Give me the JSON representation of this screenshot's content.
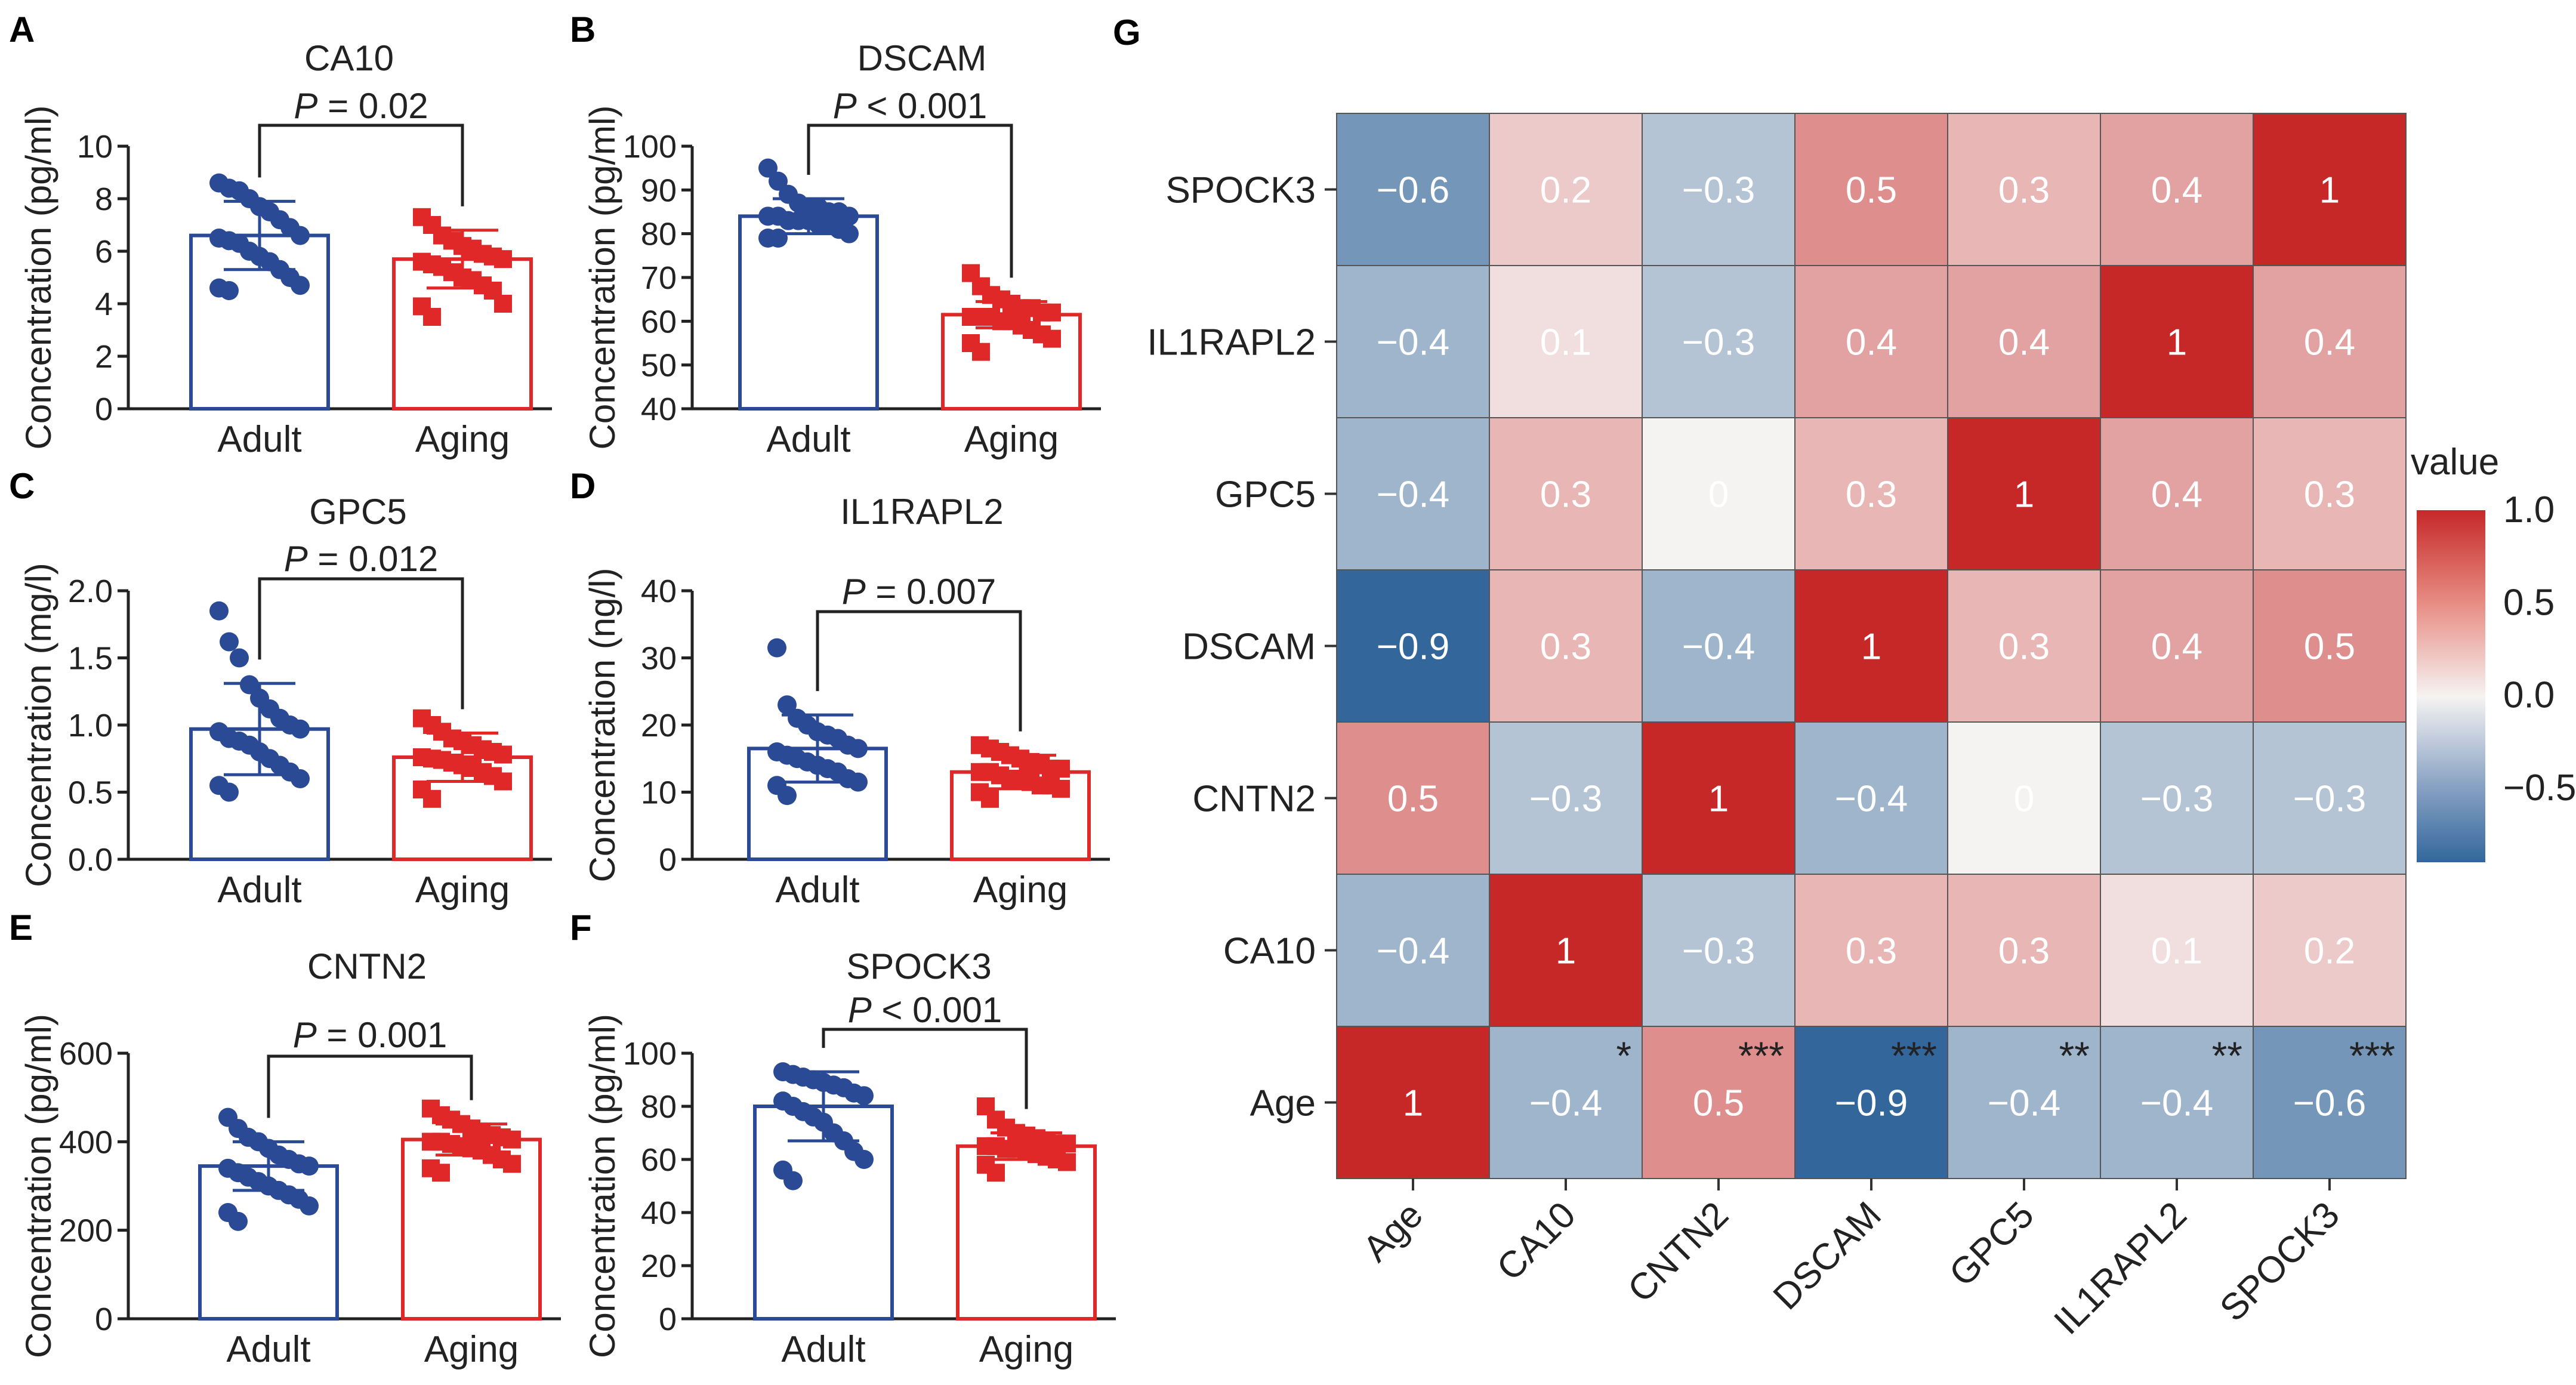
{
  "figure_labels": [
    "A",
    "B",
    "C",
    "D",
    "E",
    "F",
    "G"
  ],
  "chart_data": [
    {
      "panel": "A",
      "type": "bar",
      "title": "CA10",
      "ylabel": "Concentration (pg/ml)",
      "ylim": [
        0,
        10
      ],
      "yticks": [
        "0",
        "2",
        "4",
        "6",
        "8",
        "10"
      ],
      "categories": [
        "Adult",
        "Aging"
      ],
      "values": [
        6.6,
        5.7
      ],
      "sd": [
        1.3,
        1.1
      ],
      "p_label": "P",
      "p_value": "= 0.02",
      "points": [
        [
          8.6,
          8.4,
          8.3,
          8.0,
          7.7,
          7.5,
          7.2,
          6.9,
          6.6,
          6.5,
          6.4,
          6.3,
          6.0,
          5.8,
          5.6,
          5.3,
          5.0,
          4.7,
          4.6,
          4.5
        ],
        [
          7.3,
          7.0,
          6.6,
          6.4,
          6.2,
          6.1,
          5.9,
          5.8,
          5.7,
          5.6,
          5.5,
          5.4,
          5.2,
          5.0,
          4.9,
          4.7,
          4.5,
          4.0,
          3.9,
          3.5
        ]
      ]
    },
    {
      "panel": "B",
      "type": "bar",
      "title": "DSCAM",
      "ylabel": "Concentration (pg/ml)",
      "ylim": [
        40,
        100
      ],
      "yticks": [
        "40",
        "50",
        "60",
        "70",
        "80",
        "90",
        "100"
      ],
      "categories": [
        "Adult",
        "Aging"
      ],
      "values": [
        84,
        61.5
      ],
      "sd": [
        4,
        3
      ],
      "p_label": "P",
      "p_value": "< 0.001",
      "points": [
        [
          95,
          92,
          89,
          87,
          86,
          86,
          85,
          85,
          84,
          84,
          84,
          83,
          83,
          83,
          82,
          82,
          81,
          80,
          79,
          79
        ],
        [
          71,
          68,
          66,
          65,
          64,
          63,
          63,
          62,
          62,
          61,
          61,
          61,
          60,
          60,
          59,
          58,
          57,
          56,
          55,
          53
        ]
      ]
    },
    {
      "panel": "C",
      "type": "bar",
      "title": "GPC5",
      "ylabel": "Concentration (mg/l)",
      "ylim": [
        0,
        2.0
      ],
      "yticks": [
        "0.0",
        "0.5",
        "1.0",
        "1.5",
        "2.0"
      ],
      "categories": [
        "Adult",
        "Aging"
      ],
      "values": [
        0.97,
        0.76
      ],
      "sd": [
        0.34,
        0.18
      ],
      "p_label": "P",
      "p_value": "= 0.012",
      "points": [
        [
          1.85,
          1.62,
          1.5,
          1.3,
          1.2,
          1.12,
          1.05,
          1.0,
          0.97,
          0.95,
          0.9,
          0.88,
          0.85,
          0.8,
          0.75,
          0.7,
          0.65,
          0.6,
          0.55,
          0.5
        ],
        [
          1.05,
          1.0,
          0.95,
          0.9,
          0.88,
          0.85,
          0.82,
          0.8,
          0.78,
          0.76,
          0.75,
          0.74,
          0.72,
          0.7,
          0.68,
          0.65,
          0.62,
          0.58,
          0.52,
          0.45
        ]
      ]
    },
    {
      "panel": "D",
      "type": "bar",
      "title": "IL1RAPL2",
      "ylabel": "Concentration (ng/l)",
      "ylim": [
        0,
        40
      ],
      "yticks": [
        "0",
        "10",
        "20",
        "30",
        "40"
      ],
      "categories": [
        "Adult",
        "Aging"
      ],
      "values": [
        16.5,
        13
      ],
      "sd": [
        5,
        2.5
      ],
      "p_label": "P",
      "p_value": "= 0.007",
      "points": [
        [
          31.5,
          23,
          21,
          20,
          19,
          18.5,
          18,
          17,
          16.5,
          16,
          15.5,
          15,
          14.5,
          14,
          13.5,
          13,
          12,
          11.5,
          11,
          9.5
        ],
        [
          17,
          16.5,
          16,
          15.5,
          15,
          14.5,
          14,
          13.5,
          13.5,
          13,
          13,
          12.5,
          12,
          12,
          11.5,
          11,
          11,
          10.5,
          10,
          9
        ]
      ]
    },
    {
      "panel": "E",
      "type": "bar",
      "title": "CNTN2",
      "ylabel": "Concentration (pg/ml)",
      "ylim": [
        0,
        600
      ],
      "yticks": [
        "0",
        "200",
        "400",
        "600"
      ],
      "categories": [
        "Adult",
        "Aging"
      ],
      "values": [
        345,
        405
      ],
      "sd": [
        55,
        35
      ],
      "p_label": "P",
      "p_value": "= 0.001",
      "points": [
        [
          455,
          430,
          410,
          400,
          385,
          370,
          360,
          350,
          345,
          340,
          330,
          320,
          310,
          300,
          290,
          280,
          270,
          255,
          240,
          220
        ],
        [
          475,
          460,
          450,
          440,
          430,
          420,
          415,
          410,
          405,
          400,
          400,
          395,
          390,
          385,
          380,
          370,
          360,
          350,
          340,
          330
        ]
      ]
    },
    {
      "panel": "F",
      "type": "bar",
      "title": "SPOCK3",
      "ylabel": "Concentration (pg/ml)",
      "ylim": [
        0,
        100
      ],
      "yticks": [
        "0",
        "20",
        "40",
        "60",
        "80",
        "100"
      ],
      "categories": [
        "Adult",
        "Aging"
      ],
      "values": [
        80,
        65
      ],
      "sd": [
        13,
        5
      ],
      "p_label": "P",
      "p_value": "< 0.001",
      "points": [
        [
          93,
          92,
          91,
          90,
          89,
          88,
          87,
          85,
          84,
          82,
          80,
          78,
          76,
          74,
          70,
          67,
          63,
          60,
          56,
          52
        ],
        [
          80,
          75,
          72,
          70,
          69,
          68,
          67,
          66,
          66,
          65,
          65,
          64,
          64,
          63,
          62,
          61,
          60,
          59,
          58,
          55
        ]
      ]
    },
    {
      "panel": "G",
      "type": "heatmap",
      "rows": [
        "SPOCK3",
        "IL1RAPL2",
        "GPC5",
        "DSCAM",
        "CNTN2",
        "CA10",
        "Age"
      ],
      "cols": [
        "Age",
        "CA10",
        "CNTN2",
        "DSCAM",
        "GPC5",
        "IL1RAPL2",
        "SPOCK3"
      ],
      "values": [
        [
          -0.6,
          0.2,
          -0.3,
          0.5,
          0.3,
          0.4,
          1
        ],
        [
          -0.4,
          0.1,
          -0.3,
          0.4,
          0.4,
          1,
          0.4
        ],
        [
          -0.4,
          0.3,
          0,
          0.3,
          1,
          0.4,
          0.3
        ],
        [
          -0.9,
          0.3,
          -0.4,
          1,
          0.3,
          0.4,
          0.5
        ],
        [
          0.5,
          -0.3,
          1,
          -0.4,
          0,
          -0.3,
          -0.3
        ],
        [
          -0.4,
          1,
          -0.3,
          0.3,
          0.3,
          0.1,
          0.2
        ],
        [
          1,
          -0.4,
          0.5,
          -0.9,
          -0.4,
          -0.4,
          -0.6
        ]
      ],
      "labels": [
        [
          "−0.6",
          "0.2",
          "−0.3",
          "0.5",
          "0.3",
          "0.4",
          "1"
        ],
        [
          "−0.4",
          "0.1",
          "−0.3",
          "0.4",
          "0.4",
          "1",
          "0.4"
        ],
        [
          "−0.4",
          "0.3",
          "0",
          "0.3",
          "1",
          "0.4",
          "0.3"
        ],
        [
          "−0.9",
          "0.3",
          "−0.4",
          "1",
          "0.3",
          "0.4",
          "0.5"
        ],
        [
          "0.5",
          "−0.3",
          "1",
          "−0.4",
          "0",
          "−0.3",
          "−0.3"
        ],
        [
          "−0.4",
          "1",
          "−0.3",
          "0.3",
          "0.3",
          "0.1",
          "0.2"
        ],
        [
          "1",
          "−0.4",
          "0.5",
          "−0.9",
          "−0.4",
          "−0.4",
          "−0.6"
        ]
      ],
      "significance_row": "Age",
      "significance": [
        "",
        "*",
        "***",
        "***",
        "**",
        "**",
        "***"
      ],
      "legend": {
        "title": "value",
        "ticks": [
          "1.0",
          "0.5",
          "0.0",
          "−0.5"
        ],
        "tick_values": [
          1.0,
          0.5,
          0.0,
          -0.5
        ],
        "range": [
          -0.9,
          1.0
        ]
      },
      "colors": {
        "pos": "#c62828",
        "neg": "#33679c",
        "mid": "#f5f3f2"
      }
    }
  ],
  "colors": {
    "adult": "#2b4a96",
    "aging": "#e02828"
  }
}
